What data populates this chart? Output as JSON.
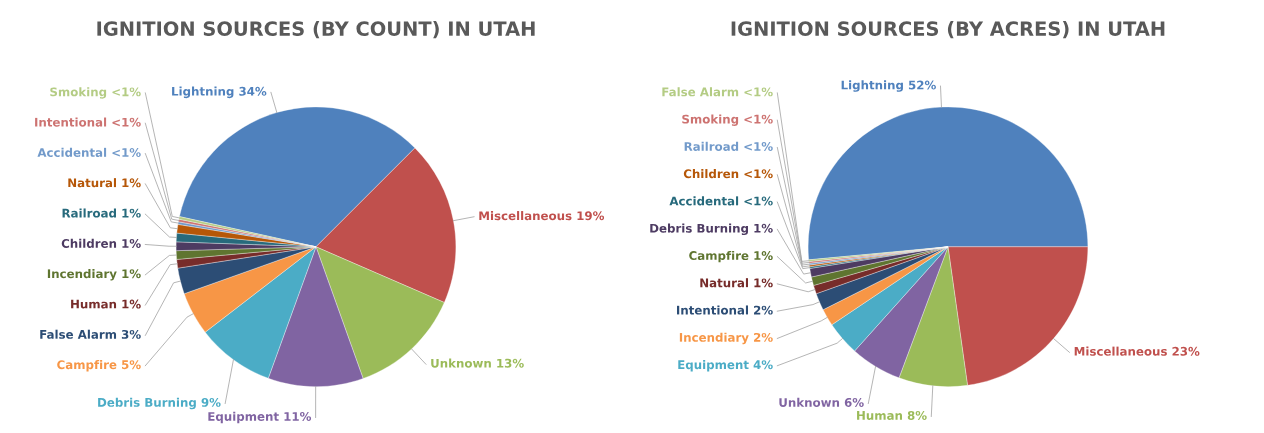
{
  "chart_data": [
    {
      "type": "pie",
      "title": "IGNITION SOURCES (BY COUNT) IN UTAH",
      "categories": [
        "Lightning",
        "Miscellaneous",
        "Unknown",
        "Equipment",
        "Debris Burning",
        "Campfire",
        "False Alarm",
        "Human",
        "Incendiary",
        "Children",
        "Railroad",
        "Natural",
        "Accidental",
        "Intentional",
        "Smoking"
      ],
      "values": [
        34,
        19,
        13,
        11,
        9,
        5,
        3,
        1,
        1,
        1,
        1,
        1,
        0.3,
        0.3,
        0.3
      ],
      "value_labels": [
        "34%",
        "19%",
        "13%",
        "11%",
        "9%",
        "5%",
        "3%",
        "1%",
        "1%",
        "1%",
        "1%",
        "1%",
        "<1%",
        "<1%",
        "<1%"
      ],
      "colors": [
        "#4f81bd",
        "#c0504d",
        "#9bbb59",
        "#8064a2",
        "#4bacc6",
        "#f79646",
        "#2c4d75",
        "#772c2a",
        "#5f7530",
        "#4d3b62",
        "#276a7c",
        "#b65708",
        "#729aca",
        "#cd7371",
        "#b4cc84"
      ],
      "legend": false
    },
    {
      "type": "pie",
      "title": "IGNITION SOURCES (BY ACRES) IN UTAH",
      "categories": [
        "Lightning",
        "Miscellaneous",
        "Human",
        "Unknown",
        "Equipment",
        "Incendiary",
        "Intentional",
        "Natural",
        "Campfire",
        "Debris Burning",
        "Accidental",
        "Children",
        "Railroad",
        "Smoking",
        "False Alarm"
      ],
      "values": [
        52,
        23,
        8,
        6,
        4,
        2,
        2,
        1,
        1,
        1,
        0.2,
        0.2,
        0.2,
        0.2,
        0.2
      ],
      "value_labels": [
        "52%",
        "23%",
        "8%",
        "6%",
        "4%",
        "2%",
        "2%",
        "1%",
        "1%",
        "1%",
        "<1%",
        "<1%",
        "<1%",
        "<1%",
        "<1%"
      ],
      "colors": [
        "#4f81bd",
        "#c0504d",
        "#9bbb59",
        "#8064a2",
        "#4bacc6",
        "#f79646",
        "#2c4d75",
        "#772c2a",
        "#5f7530",
        "#4d3b62",
        "#276a7c",
        "#b65708",
        "#729aca",
        "#cd7371",
        "#b4cc84"
      ],
      "legend": false
    }
  ]
}
